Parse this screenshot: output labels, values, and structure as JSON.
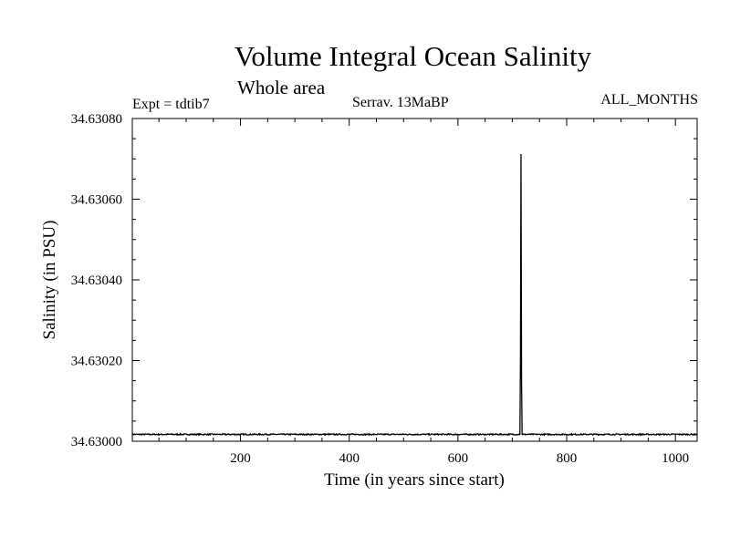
{
  "title": "Volume Integral Ocean Salinity",
  "subtitle": "Whole area",
  "expt": "Expt = tdtib7",
  "period": "Serrav.   13MaBP",
  "months": "ALL_MONTHS",
  "chart_data": {
    "type": "line",
    "xlabel": "Time (in years since start)",
    "ylabel": "Salinity (in PSU)",
    "xlim": [
      1,
      1040
    ],
    "ylim": [
      34.63,
      34.6308
    ],
    "xticks": [
      200,
      400,
      600,
      800,
      1000
    ],
    "xtick_labels": [
      "200",
      "400",
      "600",
      "800",
      "1000"
    ],
    "yticks": [
      34.63,
      34.6302,
      34.6304,
      34.6306,
      34.6308
    ],
    "ytick_labels": [
      "34.63000",
      "34.63020",
      "34.63040",
      "34.63060",
      "34.63080"
    ],
    "grid": false,
    "series": [
      {
        "color": "#000000",
        "baseline": 34.630017,
        "noise_amplitude": 1.5e-06,
        "spike": [
          {
            "x": 714,
            "y": 34.630017
          },
          {
            "x": 715,
            "y": 34.630205
          },
          {
            "x": 716,
            "y": 34.630712
          },
          {
            "x": 717,
            "y": 34.630151
          },
          {
            "x": 718,
            "y": 34.630017
          }
        ]
      }
    ]
  }
}
